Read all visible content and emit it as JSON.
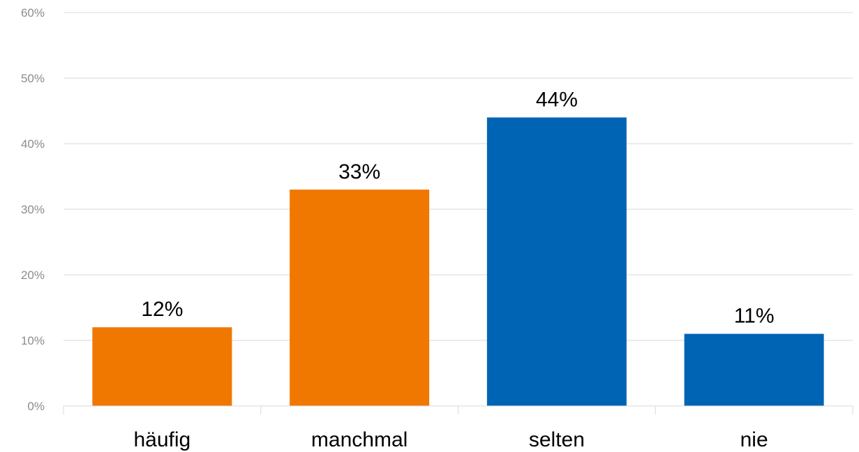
{
  "chart_data": {
    "type": "bar",
    "title": "",
    "xlabel": "",
    "ylabel": "",
    "categories": [
      "häufig",
      "manchmal",
      "selten",
      "nie"
    ],
    "values": [
      12,
      33,
      44,
      11
    ],
    "value_labels": [
      "12%",
      "33%",
      "44%",
      "11%"
    ],
    "bar_colors": [
      "#f07800",
      "#f07800",
      "#0064b4",
      "#0064b4"
    ],
    "ylim": [
      0,
      60
    ],
    "y_ticks": [
      0,
      10,
      20,
      30,
      40,
      50,
      60
    ],
    "y_tick_labels": [
      "0%",
      "10%",
      "20%",
      "30%",
      "40%",
      "50%",
      "60%"
    ],
    "grid": true,
    "legend": "none"
  }
}
